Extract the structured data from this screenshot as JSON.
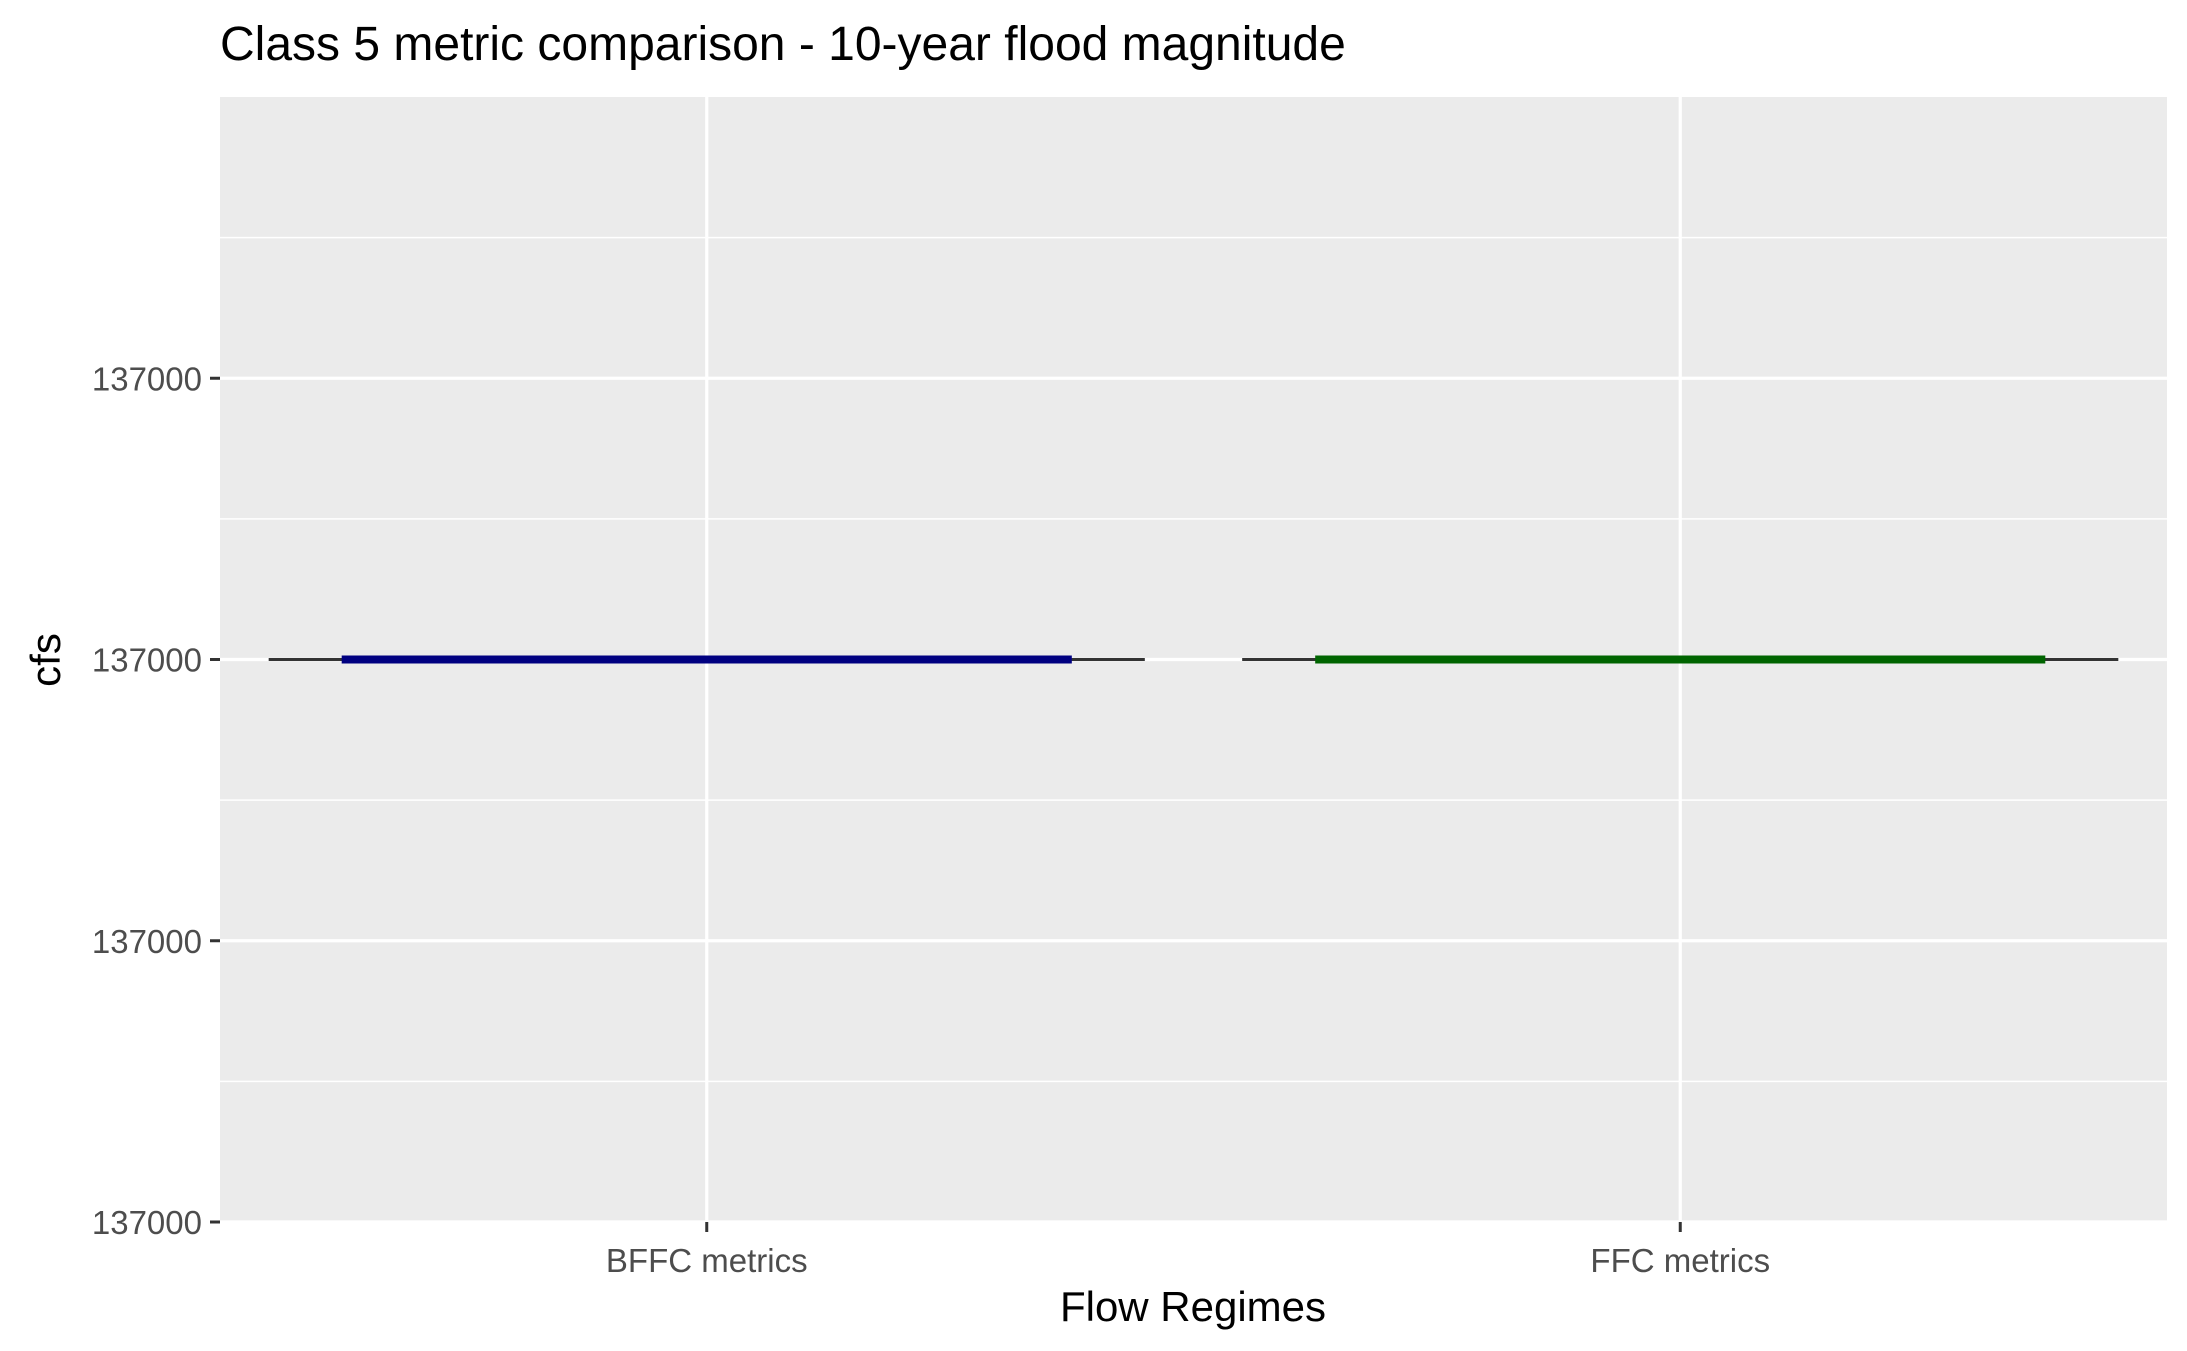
{
  "chart_data": {
    "type": "boxplot",
    "title": "Class 5 metric comparison - 10-year flood magnitude",
    "xlabel": "Flow Regimes",
    "ylabel": "cfs",
    "categories": [
      "BFFC metrics",
      "FFC metrics"
    ],
    "y_tick_labels": [
      "137000",
      "137000",
      "137000",
      "137000"
    ],
    "series": [
      {
        "name": "BFFC metrics",
        "min": 137000,
        "q1": 137000,
        "median": 137000,
        "q3": 137000,
        "max": 137000,
        "color": "#000080"
      },
      {
        "name": "FFC metrics",
        "min": 137000,
        "q1": 137000,
        "median": 137000,
        "q3": 137000,
        "max": 137000,
        "color": "#006400"
      }
    ],
    "grid": true,
    "legend": "none",
    "colors": {
      "panel": "#ebebeb",
      "grid": "#ffffff",
      "whisker": "#333333",
      "tick": "#333333"
    }
  }
}
